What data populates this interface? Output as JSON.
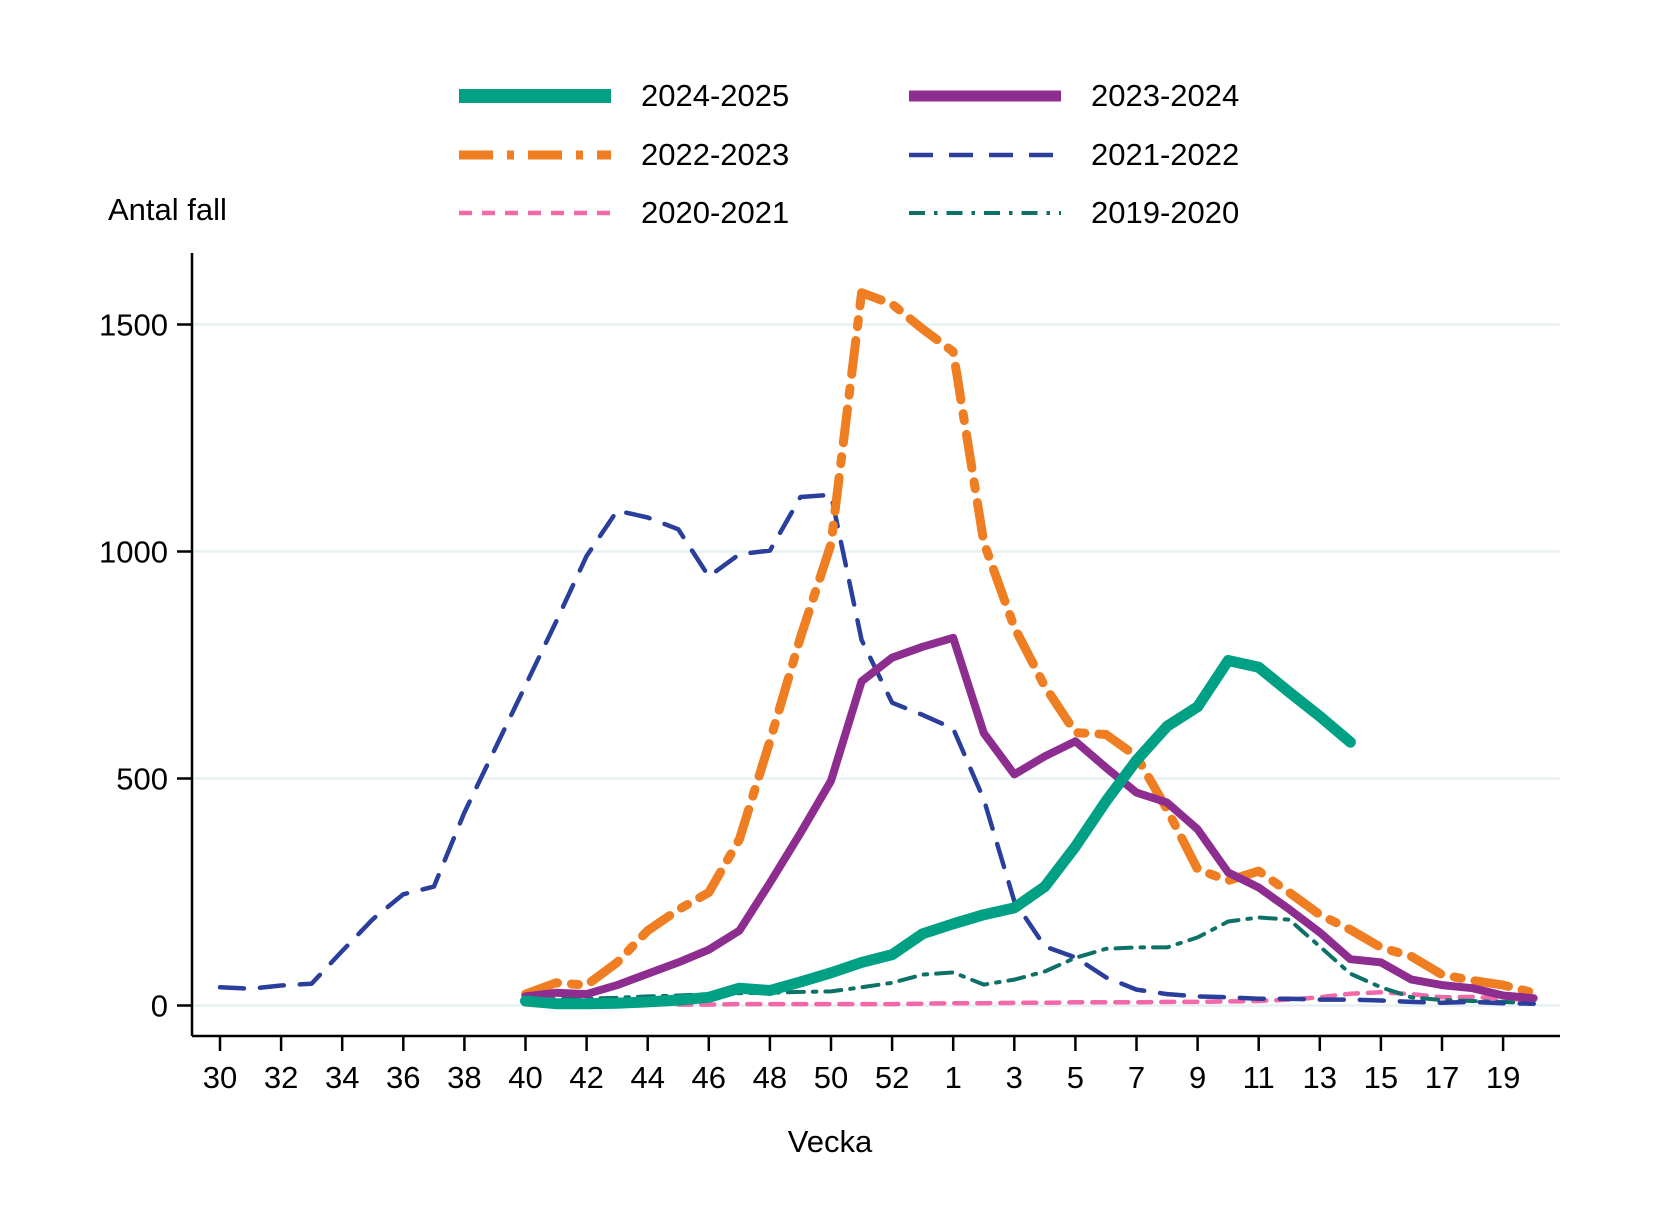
{
  "chart_data": {
    "type": "line",
    "title": "Antal fall",
    "xlabel": "Vecka",
    "ylabel": "Antal fall",
    "ylim": [
      0,
      1600
    ],
    "yticks": [
      0,
      500,
      1000,
      1500
    ],
    "grid": "horizontal",
    "legend_position": "top",
    "x_axis_note": "weeks 30-53 of first year followed by weeks 1-20 of next year; ticks labeled every second week",
    "categories": [
      "30",
      "31",
      "32",
      "33",
      "34",
      "35",
      "36",
      "37",
      "38",
      "39",
      "40",
      "41",
      "42",
      "43",
      "44",
      "45",
      "46",
      "47",
      "48",
      "49",
      "50",
      "51",
      "52",
      "53",
      "1",
      "2",
      "3",
      "4",
      "5",
      "6",
      "7",
      "8",
      "9",
      "10",
      "11",
      "12",
      "13",
      "14",
      "15",
      "16",
      "17",
      "18",
      "19",
      "20"
    ],
    "series": [
      {
        "name": "2020-2021",
        "color": "#F368A9",
        "width": 4.5,
        "dasharray": "13 10",
        "values": [
          null,
          null,
          null,
          null,
          null,
          null,
          null,
          null,
          null,
          null,
          null,
          null,
          null,
          null,
          null,
          2,
          2,
          3,
          3,
          3,
          3,
          3,
          3,
          4,
          5,
          5,
          6,
          6,
          7,
          7,
          7,
          8,
          8,
          9,
          10,
          13,
          18,
          26,
          29,
          25,
          18,
          19,
          15,
          12
        ]
      },
      {
        "name": "2019-2020",
        "color": "#0D7168",
        "width": 4,
        "dasharray": "16 9 3.5 9",
        "values": [
          null,
          null,
          null,
          null,
          null,
          null,
          null,
          null,
          null,
          null,
          12,
          14,
          15,
          17,
          20,
          22,
          25,
          27,
          28,
          30,
          31,
          40,
          50,
          68,
          73,
          46,
          57,
          75,
          105,
          125,
          128,
          128,
          150,
          185,
          194,
          189,
          130,
          70,
          40,
          18,
          12,
          10,
          8,
          5
        ]
      },
      {
        "name": "2021-2022",
        "color": "#2A3F9B",
        "width": 4.5,
        "dasharray": "24 16",
        "values": [
          40,
          37,
          44,
          48,
          120,
          190,
          245,
          262,
          425,
          565,
          705,
          845,
          990,
          1090,
          1075,
          1049,
          945,
          994,
          1002,
          1120,
          1125,
          805,
          667,
          640,
          610,
          454,
          230,
          130,
          106,
          62,
          35,
          25,
          20,
          18,
          15,
          15,
          13,
          13,
          11,
          8,
          6,
          8,
          5,
          4
        ]
      },
      {
        "name": "2022-2023",
        "color": "#EF7D22",
        "width": 9,
        "dasharray": "34 14 7 14",
        "values": [
          null,
          null,
          null,
          null,
          null,
          null,
          null,
          null,
          null,
          null,
          25,
          50,
          45,
          95,
          165,
          211,
          249,
          366,
          582,
          811,
          1016,
          1570,
          1545,
          1490,
          1440,
          1020,
          833,
          703,
          601,
          597,
          549,
          432,
          300,
          275,
          296,
          249,
          200,
          167,
          128,
          108,
          68,
          55,
          45,
          28
        ]
      },
      {
        "name": "2023-2024",
        "color": "#8E2D90",
        "width": 8,
        "dasharray": "",
        "values": [
          null,
          null,
          null,
          null,
          null,
          null,
          null,
          null,
          null,
          null,
          20,
          28,
          25,
          45,
          70,
          95,
          123,
          165,
          270,
          380,
          495,
          714,
          766,
          790,
          810,
          600,
          509,
          549,
          582,
          524,
          469,
          447,
          388,
          293,
          260,
          212,
          161,
          102,
          95,
          57,
          45,
          38,
          22,
          16
        ]
      },
      {
        "name": "2024-2025",
        "color": "#00A085",
        "width": 11,
        "dasharray": "",
        "values": [
          null,
          null,
          null,
          null,
          null,
          null,
          null,
          null,
          null,
          null,
          10,
          4,
          4,
          5,
          8,
          12,
          18,
          38,
          33,
          52,
          72,
          95,
          112,
          158,
          180,
          200,
          215,
          262,
          350,
          450,
          540,
          615,
          658,
          760,
          745,
          690,
          637,
          580,
          null,
          null,
          null,
          null,
          null,
          null
        ]
      }
    ]
  }
}
